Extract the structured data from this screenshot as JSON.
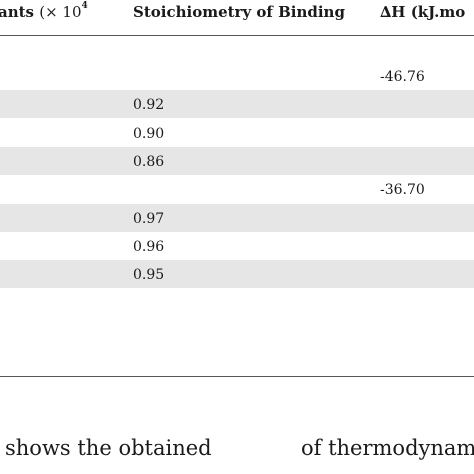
{
  "table": {
    "headers": {
      "col1": "ants",
      "col1_times": "(× 10",
      "col1_exp": "4",
      "col2": "Stoichiometry of Binding",
      "col3": "∆H (kJ.mo"
    },
    "rows": [
      {
        "stoich": "",
        "dh": "-46.76"
      },
      {
        "stoich": "0.92",
        "dh": ""
      },
      {
        "stoich": "0.90",
        "dh": ""
      },
      {
        "stoich": "0.86",
        "dh": ""
      },
      {
        "stoich": "",
        "dh": "-36.70"
      },
      {
        "stoich": "0.97",
        "dh": ""
      },
      {
        "stoich": "0.96",
        "dh": ""
      },
      {
        "stoich": "0.95",
        "dh": ""
      }
    ]
  },
  "caption": {
    "left": "shows the obtained",
    "right": "of thermodynamic"
  }
}
